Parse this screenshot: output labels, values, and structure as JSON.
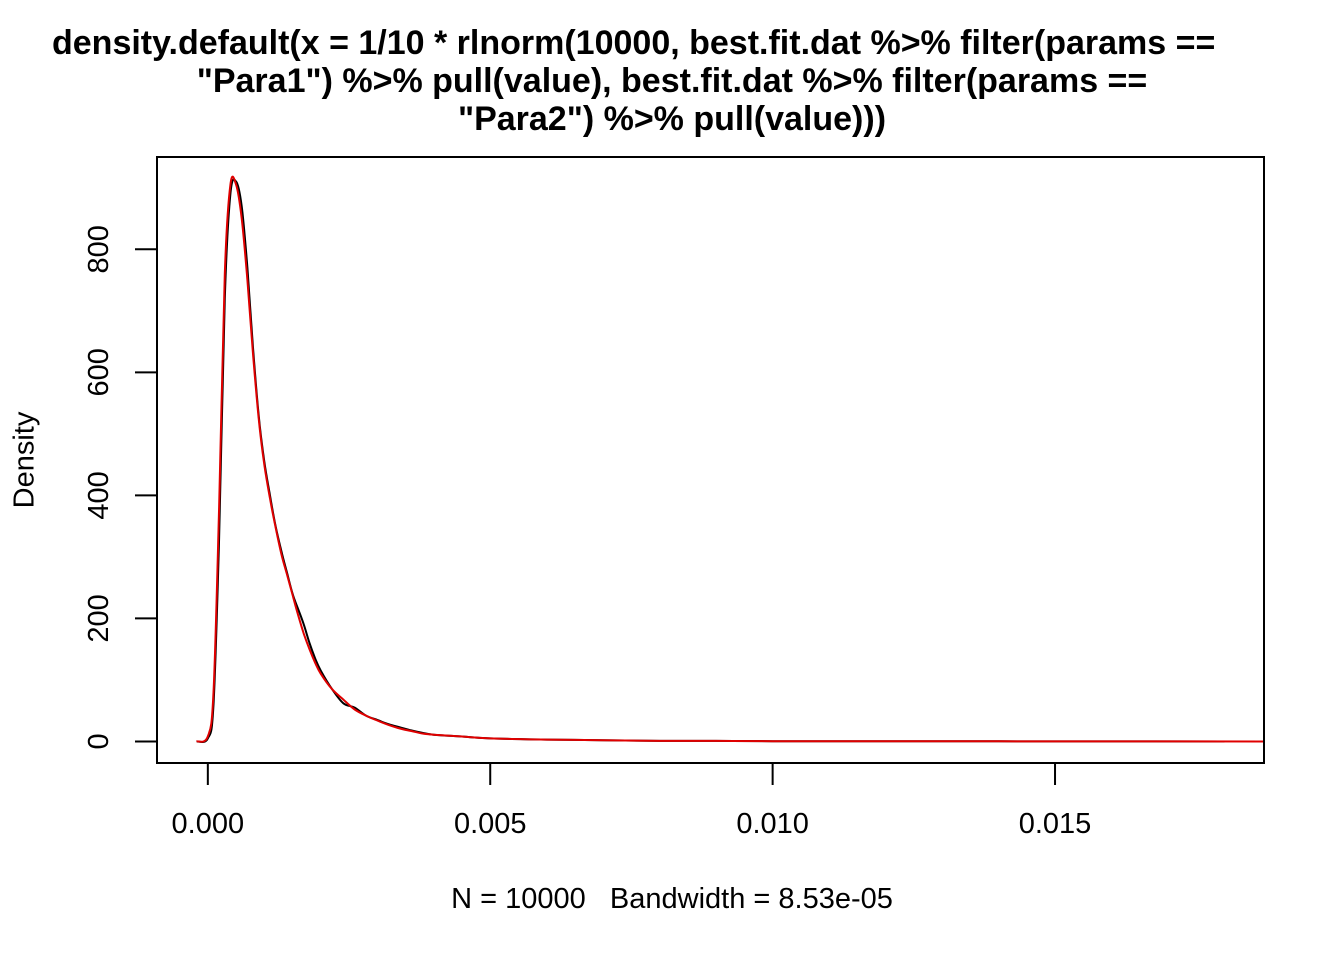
{
  "title_lines": [
    "density.default(x = 1/10 * rlnorm(10000, best.fit.dat %>% filter(params ==",
    "\"Para1\") %>% pull(value), best.fit.dat %>% filter(params ==",
    "\"Para2\") %>% pull(value)))"
  ],
  "chart_data": {
    "type": "line",
    "title": "density.default(x = 1/10 * rlnorm(10000, best.fit.dat %>% filter(params == \"Para1\") %>% pull(value), best.fit.dat %>% filter(params == \"Para2\") %>% pull(value)))",
    "xlabel": "N = 10000   Bandwidth = 8.53e-05",
    "ylabel": "Density",
    "xlim": [
      -0.0009,
      0.0187
    ],
    "ylim": [
      -35,
      950
    ],
    "x_ticks": [
      0.0,
      0.005,
      0.01,
      0.015
    ],
    "x_tick_labels": [
      "0.000",
      "0.005",
      "0.010",
      "0.015"
    ],
    "y_ticks": [
      0,
      200,
      400,
      600,
      800
    ],
    "y_tick_labels": [
      "0",
      "200",
      "400",
      "600",
      "800"
    ],
    "grid": false,
    "legend": "none",
    "colors": {
      "series1": "#000000",
      "series2": "#e00000",
      "axis": "#000000"
    },
    "series": [
      {
        "x": [
          -0.0002,
          0.0,
          0.0001,
          0.0002,
          0.0003,
          0.0004,
          0.0005,
          0.0006,
          0.0007,
          0.0008,
          0.0009,
          0.001,
          0.0011,
          0.0012,
          0.0013,
          0.0014,
          0.0015,
          0.0016,
          0.0017,
          0.0018,
          0.0019,
          0.002,
          0.0022,
          0.0024,
          0.0026,
          0.0028,
          0.003,
          0.0032,
          0.0034,
          0.0036,
          0.0038,
          0.004,
          0.0045,
          0.005,
          0.006,
          0.007,
          0.008,
          0.009,
          0.01,
          0.012,
          0.014,
          0.016,
          0.018
        ],
        "values": [
          0,
          5,
          60,
          330,
          720,
          890,
          910,
          870,
          770,
          640,
          530,
          455,
          400,
          350,
          310,
          275,
          240,
          215,
          190,
          160,
          135,
          115,
          85,
          62,
          55,
          42,
          35,
          28,
          23,
          18,
          14,
          11,
          8,
          5,
          3,
          2,
          1,
          1,
          0.5,
          0.3,
          0.2,
          0.1,
          0
        ]
      },
      {
        "x": [
          -0.0002,
          0.0,
          0.0001,
          0.0002,
          0.0003,
          0.0004,
          0.0005,
          0.0006,
          0.0007,
          0.0008,
          0.0009,
          0.001,
          0.0011,
          0.0012,
          0.0013,
          0.0014,
          0.0015,
          0.0016,
          0.0017,
          0.0018,
          0.0019,
          0.002,
          0.0022,
          0.0024,
          0.0026,
          0.0028,
          0.003,
          0.0032,
          0.0034,
          0.0036,
          0.0038,
          0.004,
          0.0045,
          0.005,
          0.006,
          0.007,
          0.008,
          0.009,
          0.01,
          0.012,
          0.014,
          0.016,
          0.0187
        ],
        "values": [
          0,
          8,
          80,
          380,
          760,
          905,
          905,
          850,
          750,
          630,
          525,
          450,
          395,
          348,
          305,
          272,
          238,
          205,
          175,
          150,
          128,
          110,
          85,
          68,
          52,
          42,
          34,
          27,
          21,
          17,
          13,
          11,
          8,
          5,
          3,
          2,
          1,
          1,
          0.5,
          0.3,
          0.2,
          0.1,
          0
        ]
      }
    ]
  }
}
